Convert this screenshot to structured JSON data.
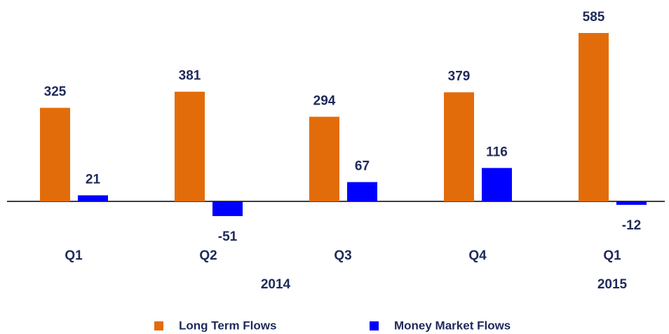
{
  "chart_data": {
    "type": "bar",
    "categories": [
      "Q1",
      "Q2",
      "Q3",
      "Q4",
      "Q1"
    ],
    "groups": [
      {
        "label": "2014",
        "count": 4
      },
      {
        "label": "2015",
        "count": 1
      }
    ],
    "series": [
      {
        "name": "Long Term Flows",
        "color": "#e36c0a",
        "values": [
          325,
          381,
          294,
          379,
          585
        ]
      },
      {
        "name": "Money Market Flows",
        "color": "#0000ff",
        "values": [
          21,
          -51,
          67,
          116,
          -12
        ]
      }
    ],
    "legend": "bottom"
  }
}
